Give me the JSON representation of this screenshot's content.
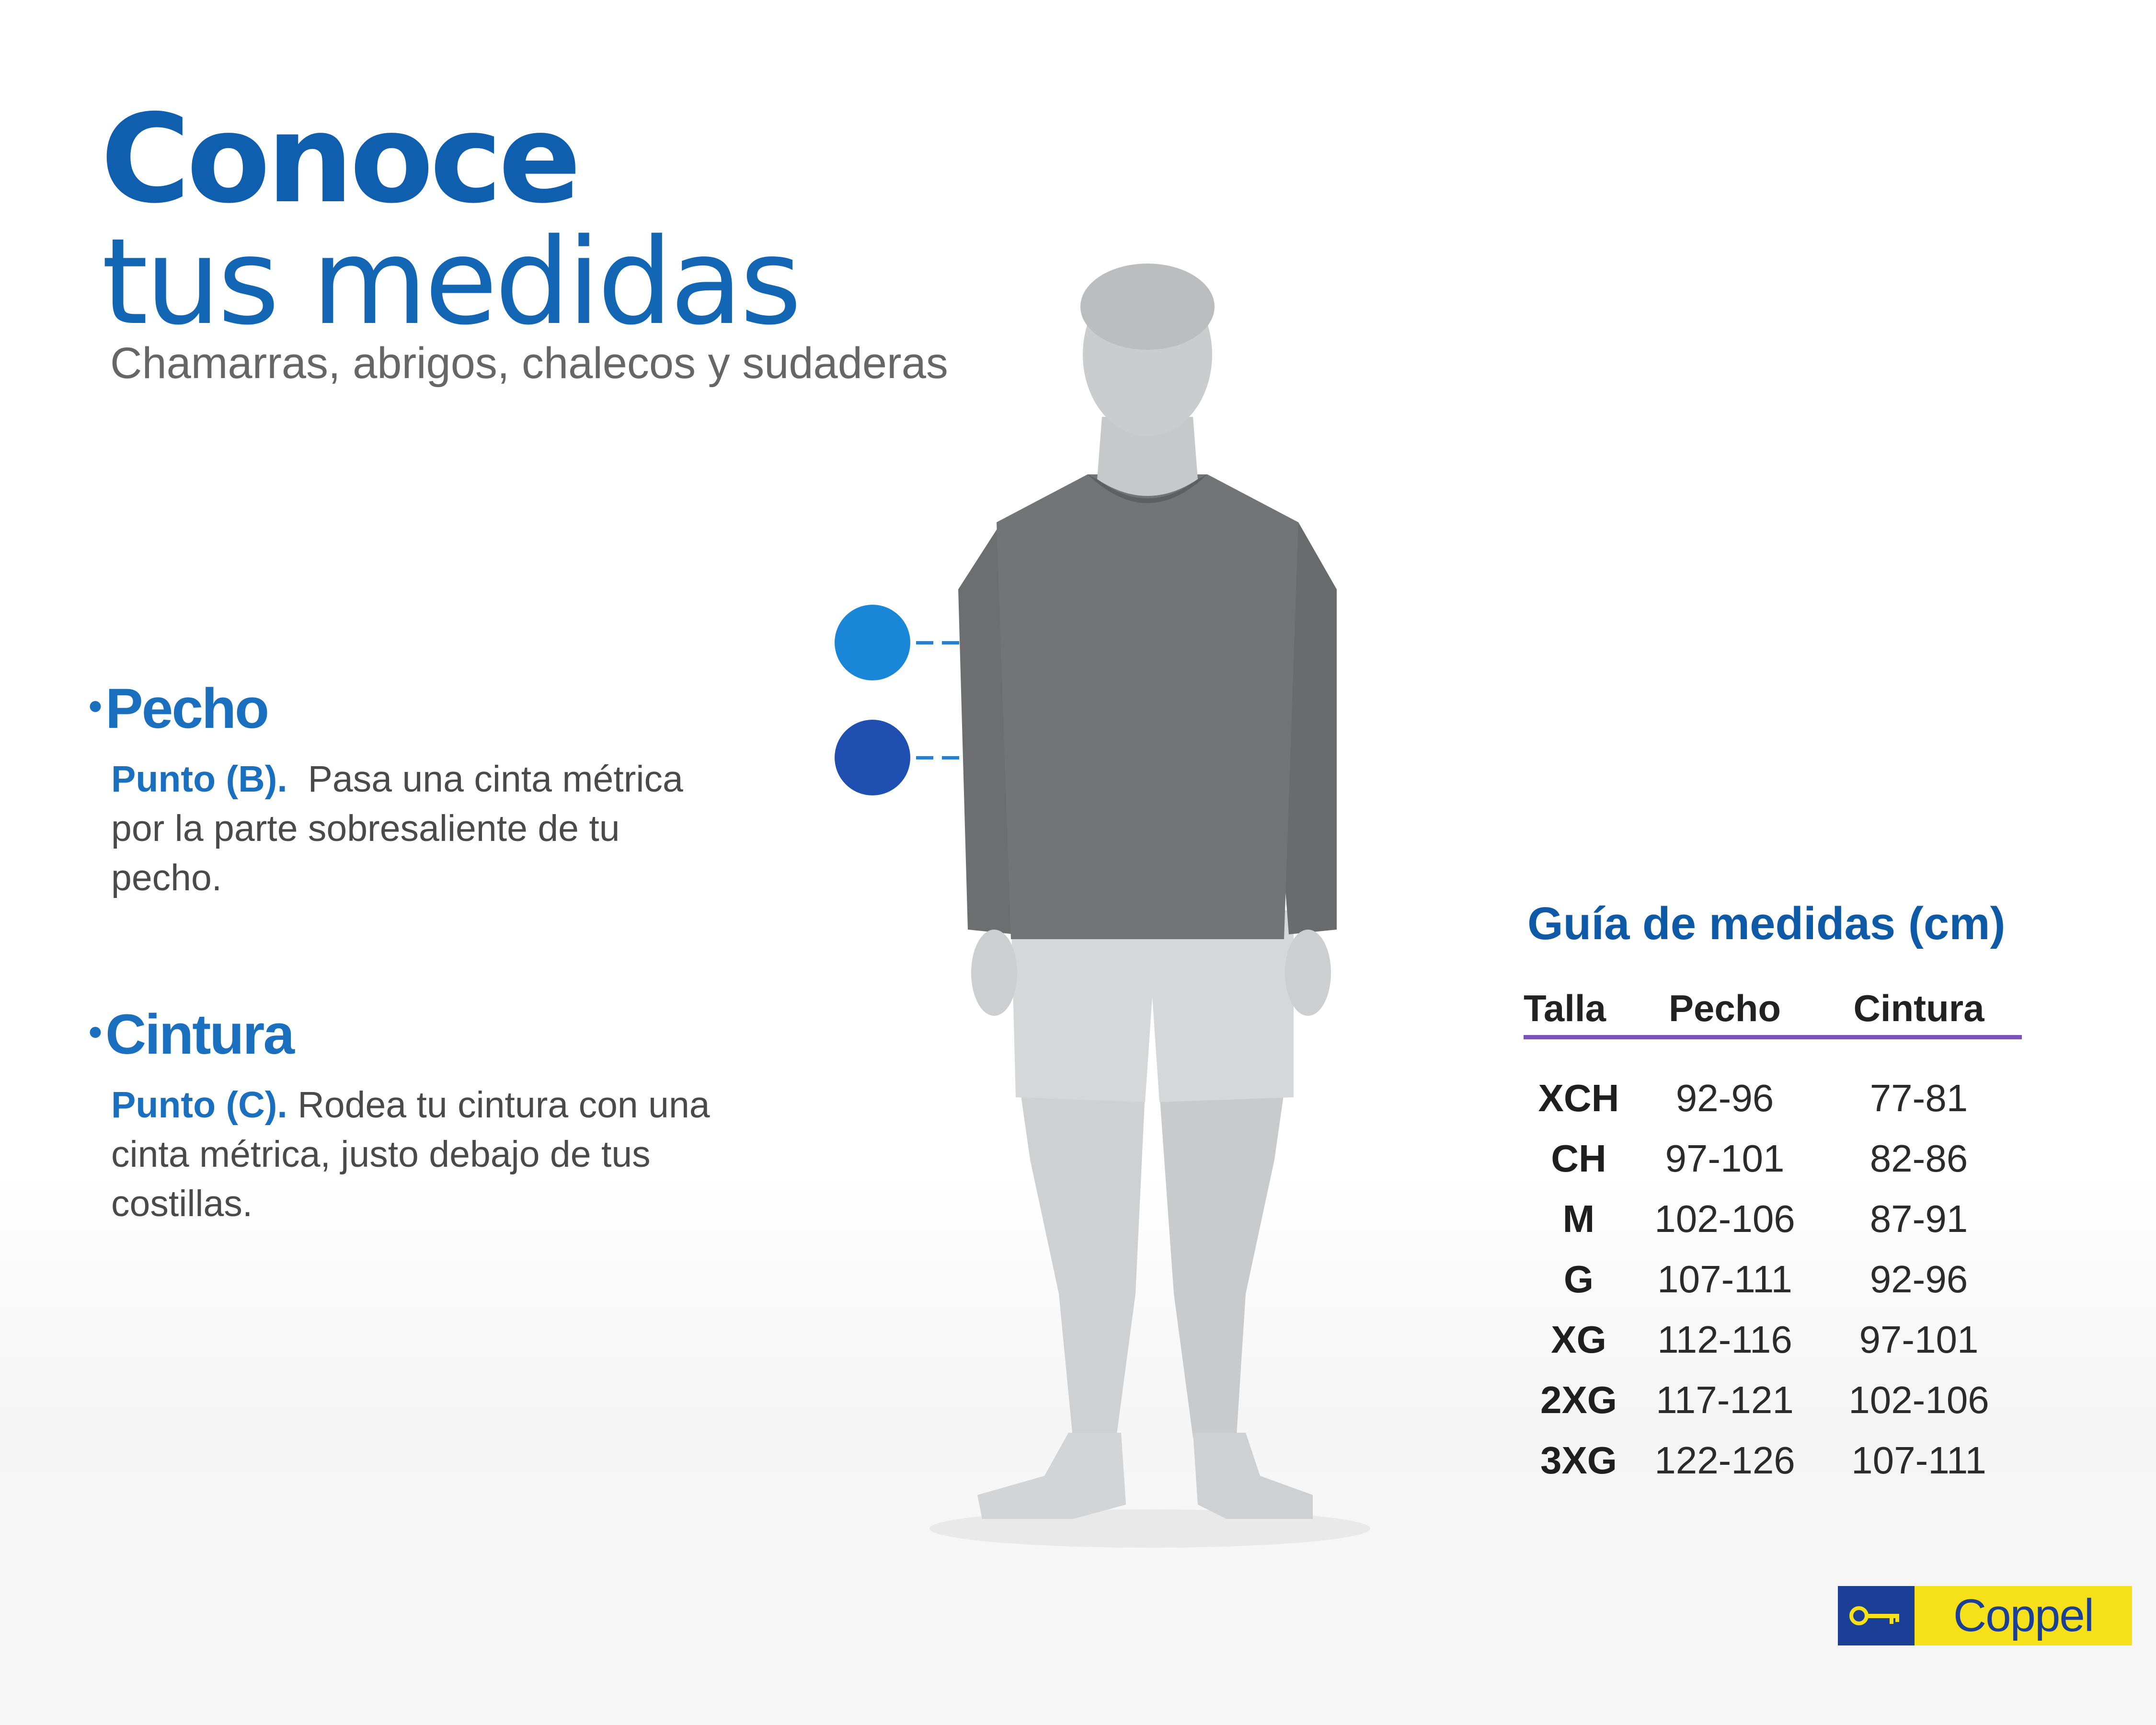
{
  "header": {
    "title_line1": "Conoce",
    "title_line2": "tus medidas",
    "subtitle": "Chamarras, abrigos, chalecos y sudaderas"
  },
  "sections": {
    "chest": {
      "heading": "Pecho",
      "point": "Punto (B).",
      "text": "Pasa una cinta métrica por la parte sobresaliente de tu pecho."
    },
    "waist": {
      "heading": "Cintura",
      "point": "Punto (C).",
      "text": "Rodea tu cintura con una cinta métrica, justo debajo de tus costillas."
    }
  },
  "guide": {
    "title": "Guía de medidas (cm)",
    "headers": {
      "size": "Talla",
      "chest": "Pecho",
      "waist": "Cintura"
    },
    "rows": [
      {
        "size": "XCH",
        "chest": "92-96",
        "waist": "77-81"
      },
      {
        "size": "CH",
        "chest": "97-101",
        "waist": "82-86"
      },
      {
        "size": "M",
        "chest": "102-106",
        "waist": "87-91"
      },
      {
        "size": "G",
        "chest": "107-111",
        "waist": "92-96"
      },
      {
        "size": "XG",
        "chest": "112-116",
        "waist": "97-101"
      },
      {
        "size": "2XG",
        "chest": "117-121",
        "waist": "102-106"
      },
      {
        "size": "3XG",
        "chest": "122-126",
        "waist": "107-111"
      }
    ]
  },
  "brand": {
    "name": "Coppel"
  },
  "colors": {
    "title_blue": "#0f5fae",
    "marker_chest": "#1a86d8",
    "marker_waist": "#1f4fb0",
    "table_rule": "#7a55b5",
    "logo_blue": "#1a3f95",
    "logo_yellow": "#f5e01a"
  },
  "icons": {
    "marker_chest": "blue-dot-icon",
    "marker_waist": "navy-dot-icon",
    "logo_key": "key-icon"
  }
}
